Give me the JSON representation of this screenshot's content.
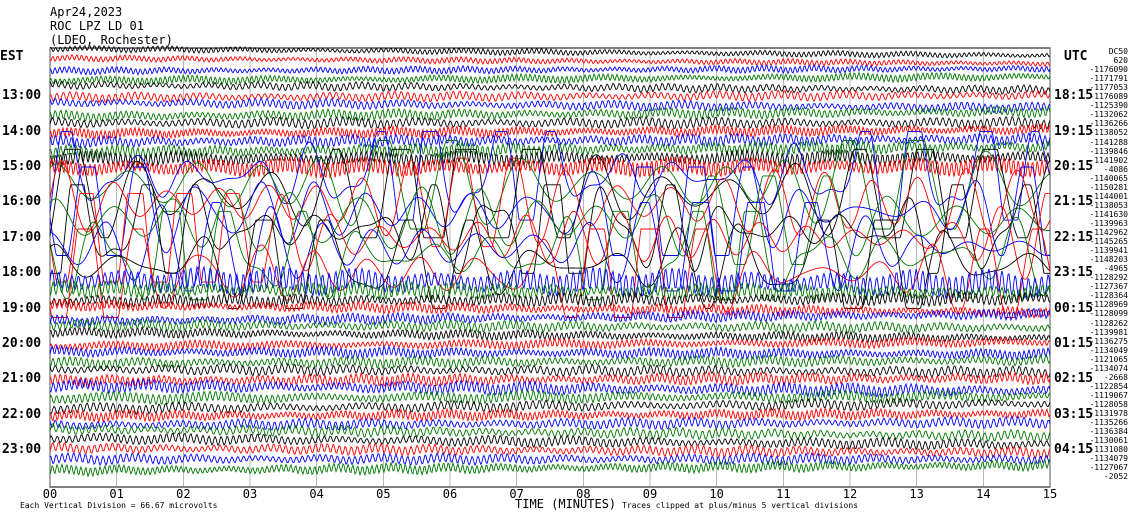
{
  "header": {
    "date": "Apr24,2023",
    "station": "ROC LPZ LD 01",
    "network": "(LDEO, Rochester)"
  },
  "left_axis_label": "EST",
  "right_axis_label": "UTC",
  "footer": {
    "scale": "Each Vertical Division =   66.67 microvolts",
    "xlabel": "TIME (MINUTES)",
    "clip_note": "Traces clipped at plus/minus 5 vertical divisions"
  },
  "chart_data": {
    "type": "line",
    "title": "ROC LPZ LD 01 helicorder Apr24,2023",
    "xlabel": "TIME (MINUTES)",
    "xlim": [
      0,
      15
    ],
    "x_ticks": [
      "00",
      "01",
      "02",
      "03",
      "04",
      "05",
      "06",
      "07",
      "08",
      "09",
      "10",
      "11",
      "12",
      "13",
      "14",
      "15"
    ],
    "est_labels": [
      "13:00",
      "14:00",
      "15:00",
      "16:00",
      "17:00",
      "18:00",
      "19:00",
      "20:00",
      "21:00",
      "22:00",
      "23:00"
    ],
    "utc_labels": [
      "18:15",
      "19:15",
      "20:15",
      "21:15",
      "22:15",
      "23:15",
      "00:15",
      "01:15",
      "02:15",
      "03:15",
      "04:15"
    ],
    "trace_colors": [
      "#000000",
      "#ff0000",
      "#0000ff",
      "#007700"
    ],
    "trace_count": 48,
    "clip_divisions": 5,
    "trace_amplitude_divisions": [
      0.6,
      0.6,
      0.7,
      0.8,
      0.8,
      0.9,
      0.9,
      1.0,
      1.0,
      1.0,
      1.1,
      1.2,
      1.4,
      1.8,
      5,
      5,
      5,
      5,
      5,
      5,
      5,
      5,
      5,
      5,
      5,
      5,
      2.5,
      1.5,
      1.2,
      1.0,
      1.0,
      1.0,
      0.9,
      0.9,
      1.0,
      1.0,
      1.0,
      1.1,
      1.2,
      1.1,
      1.0,
      1.0,
      1.0,
      1.0,
      1.0,
      1.0,
      1.0,
      1.0
    ],
    "offsets": [
      "DC50",
      "620",
      "-1176090",
      "-1171791",
      "-1177053",
      "-1176089",
      "-1125390",
      "-1132062",
      "-1136266",
      "-1138052",
      "-1141288",
      "-1139846",
      "-1141902",
      "-4086",
      "-1140065",
      "-1150281",
      "-1144001",
      "-1138053",
      "-1141630",
      "-1139963",
      "-1142962",
      "-1145265",
      "-1139941",
      "-1148203",
      "-4965",
      "-1128292",
      "-1127367",
      "-1128364",
      "-1128969",
      "-1128099",
      "-1128262",
      "-1139981",
      "-1136275",
      "-1134049",
      "-1121065",
      "-1134074",
      "-2668",
      "-1122854",
      "-1119067",
      "-1128058",
      "-1131978",
      "-1135266",
      "-1136384",
      "-1130061",
      "-1131080",
      "-1134079",
      "-1127067",
      "-2052"
    ]
  }
}
